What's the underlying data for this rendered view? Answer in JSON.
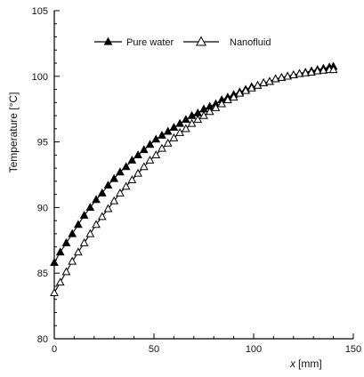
{
  "chart_data": {
    "type": "line",
    "title": "",
    "xlabel": "x [mm]",
    "xlabel_var": "x",
    "xlabel_unit": "[mm]",
    "ylabel": "Temperature [°C]",
    "xlim": [
      0,
      150
    ],
    "ylim": [
      80,
      105
    ],
    "xticks": [
      0,
      50,
      100,
      150
    ],
    "yticks": [
      80,
      85,
      90,
      95,
      100,
      105
    ],
    "grid": false,
    "legend_position": "top",
    "series": [
      {
        "name": "Pure water",
        "marker": "filled-triangle",
        "color": "#000000",
        "x": [
          0,
          3,
          6,
          9,
          12,
          15,
          18,
          21,
          24,
          27,
          30,
          33,
          36,
          39,
          42,
          45,
          48,
          51,
          54,
          57,
          60,
          63,
          66,
          69,
          72,
          75,
          78,
          81,
          84,
          87,
          90,
          93,
          96,
          99,
          102,
          105,
          108,
          111,
          114,
          117,
          120,
          123,
          126,
          129,
          132,
          135,
          138,
          140
        ],
        "y": [
          85.8,
          86.6,
          87.3,
          88.0,
          88.7,
          89.4,
          90.0,
          90.6,
          91.1,
          91.7,
          92.2,
          92.7,
          93.1,
          93.6,
          94.0,
          94.4,
          94.8,
          95.2,
          95.5,
          95.8,
          96.1,
          96.4,
          96.7,
          97.0,
          97.2,
          97.5,
          97.7,
          97.9,
          98.2,
          98.4,
          98.6,
          98.8,
          99.0,
          99.2,
          99.3,
          99.5,
          99.6,
          99.8,
          99.9,
          100.0,
          100.1,
          100.2,
          100.3,
          100.4,
          100.5,
          100.6,
          100.7,
          100.75
        ]
      },
      {
        "name": "Nanofluid",
        "marker": "open-triangle",
        "color": "#000000",
        "x": [
          0,
          3,
          6,
          9,
          12,
          15,
          18,
          21,
          24,
          27,
          30,
          33,
          36,
          39,
          42,
          45,
          48,
          51,
          54,
          57,
          60,
          63,
          66,
          69,
          72,
          75,
          78,
          81,
          84,
          87,
          90,
          93,
          96,
          99,
          102,
          105,
          108,
          111,
          114,
          117,
          120,
          123,
          126,
          129,
          132,
          135,
          138,
          140
        ],
        "y": [
          83.5,
          84.3,
          85.1,
          85.9,
          86.6,
          87.3,
          88.0,
          88.7,
          89.3,
          89.9,
          90.5,
          91.1,
          91.6,
          92.1,
          92.6,
          93.1,
          93.6,
          94.0,
          94.5,
          94.9,
          95.3,
          95.7,
          96.0,
          96.4,
          96.7,
          97.0,
          97.3,
          97.6,
          97.9,
          98.2,
          98.4,
          98.7,
          98.9,
          99.1,
          99.3,
          99.5,
          99.6,
          99.8,
          99.9,
          100.0,
          100.1,
          100.2,
          100.25,
          100.3,
          100.4,
          100.45,
          100.5,
          100.5
        ]
      }
    ]
  }
}
